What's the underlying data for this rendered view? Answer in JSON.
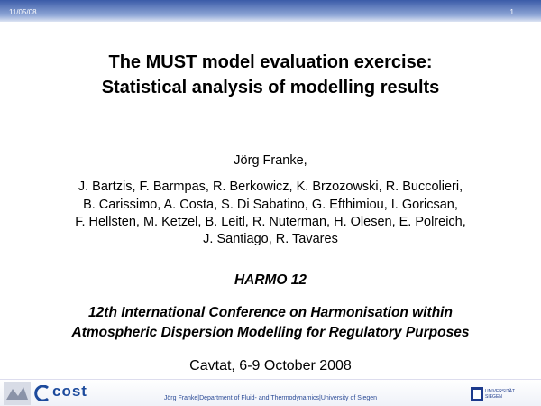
{
  "header": {
    "date": "11/05/08",
    "page": "1"
  },
  "title": [
    "The MUST model evaluation exercise:",
    "Statistical analysis of modelling results"
  ],
  "presenter": "Jörg Franke,",
  "authors": [
    "J. Bartzis, F. Barmpas, R. Berkowicz, K. Brzozowski, R. Buccolieri,",
    "B. Carissimo, A. Costa, S. Di Sabatino, G. Efthimiou, I. Goricsan,",
    "F.  Hellsten, M. Ketzel, B. Leitl, R. Nuterman, H. Olesen, E. Polreich,",
    "J. Santiago, R. Tavares"
  ],
  "event": "HARMO 12",
  "conference": [
    "12th International Conference on Harmonisation within",
    "Atmospheric Dispersion Modelling for Regulatory Purposes"
  ],
  "venue": "Cavtat, 6-9 October 2008",
  "footer": {
    "text": "Jörg Franke|Department of Fluid- and Thermodynamics|University of Siegen",
    "logo_left": "cost",
    "logo_right": "UNIVERSITÄT SIEGEN"
  }
}
